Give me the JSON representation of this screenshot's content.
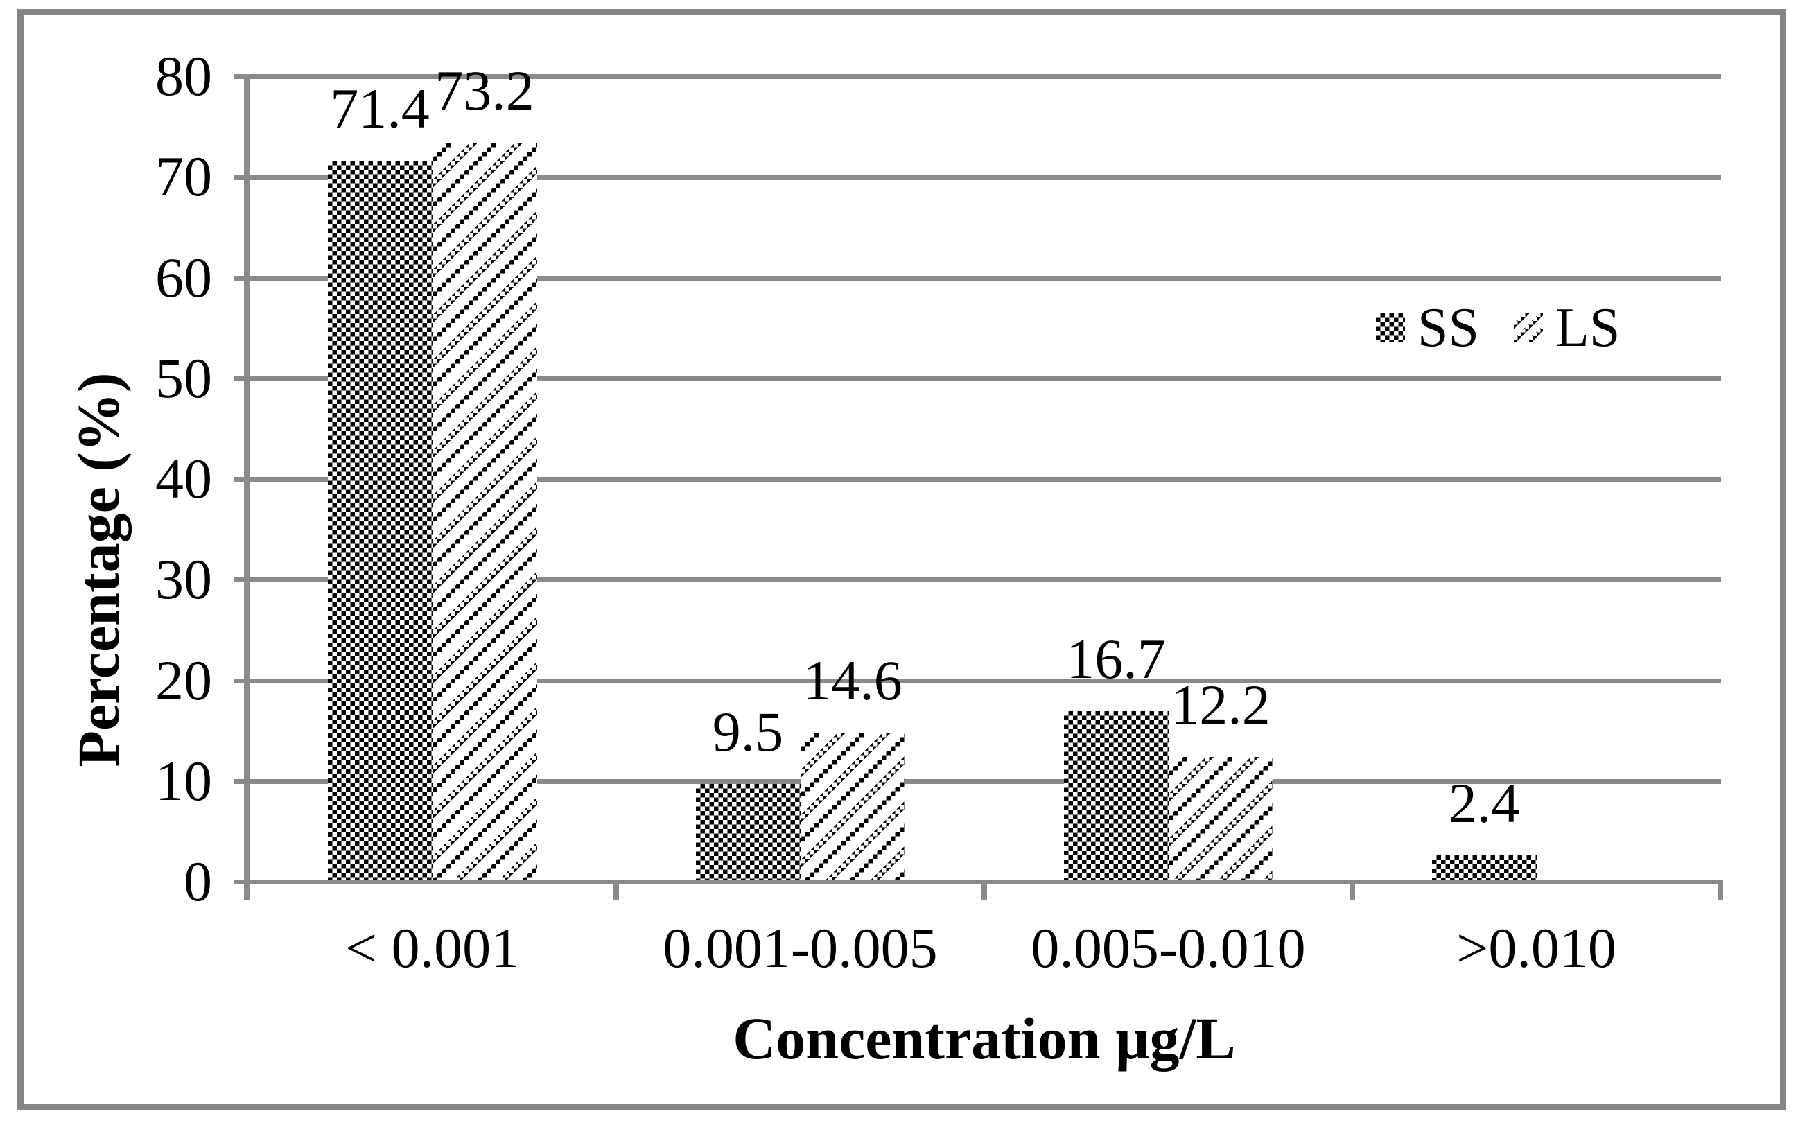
{
  "chart_data": {
    "type": "bar",
    "title": "",
    "categories": [
      "< 0.001",
      "0.001-0.005",
      "0.005-0.010",
      ">0.010"
    ],
    "series": [
      {
        "name": "SS",
        "pattern": "checkerboard",
        "values": [
          71.4,
          9.5,
          16.7,
          2.4
        ],
        "labels": [
          "71.4",
          "9.5",
          "16.7",
          "2.4"
        ]
      },
      {
        "name": "LS",
        "pattern": "diagonal-stripes",
        "values": [
          73.2,
          14.6,
          12.2,
          0
        ],
        "labels": [
          "73.2",
          "14.6",
          "12.2",
          ""
        ]
      }
    ],
    "xlabel": "Concentration µg/L",
    "ylabel": "Percentage (%)",
    "ylim": [
      0,
      80
    ],
    "ytick_step": 10,
    "yticks": [
      "0",
      "10",
      "20",
      "30",
      "40",
      "50",
      "60",
      "70",
      "80"
    ],
    "grid": "horizontal-gray",
    "legend_position": "inside-right-upper",
    "colors": {
      "bar_pattern": "#000000",
      "background": "#ffffff",
      "axis_and_grid": "#8a8a8a",
      "frame_border": "#858585",
      "text": "#000000"
    }
  }
}
